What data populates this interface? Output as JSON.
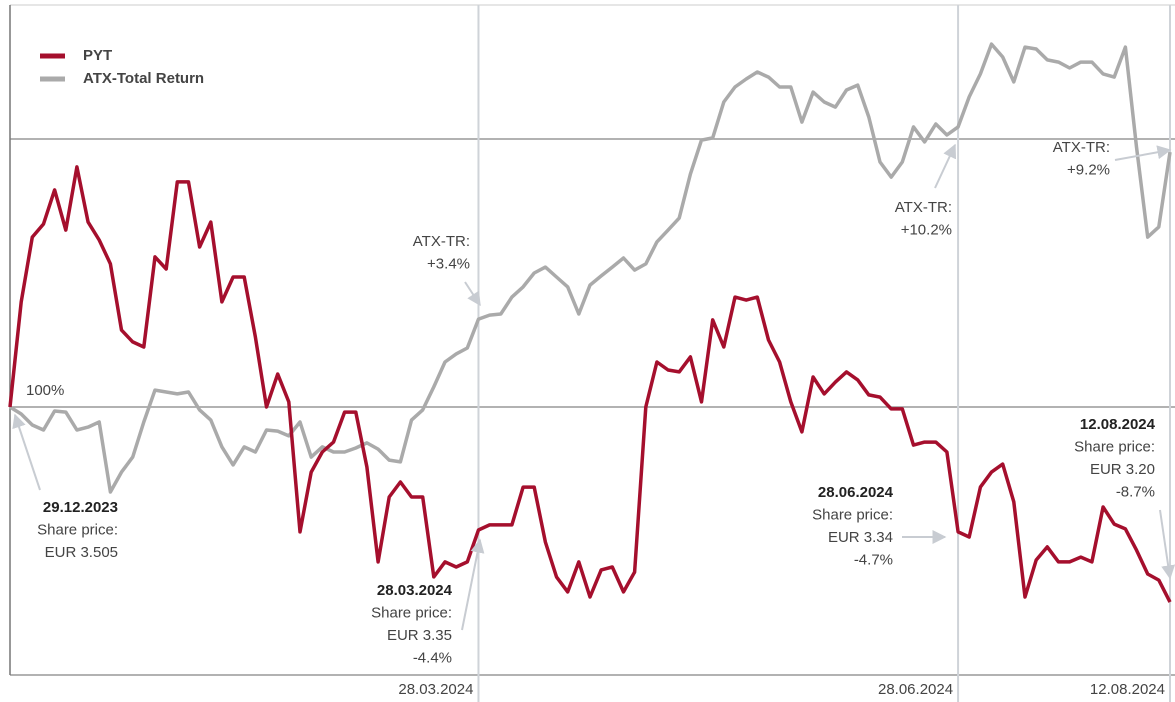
{
  "chart_data": {
    "type": "line",
    "categories": [
      null,
      null,
      null,
      null,
      null,
      null,
      null,
      null,
      null,
      null,
      null,
      null,
      null,
      null,
      null,
      null,
      null,
      null,
      null,
      null,
      null,
      null,
      null,
      null,
      null,
      null,
      null,
      null,
      null,
      null,
      null,
      null,
      null,
      null,
      null,
      null,
      null,
      null,
      null,
      null,
      null,
      null,
      "28.03.2024",
      null,
      null,
      null,
      null,
      null,
      null,
      null,
      null,
      null,
      null,
      null,
      null,
      null,
      null,
      null,
      null,
      null,
      null,
      null,
      null,
      null,
      null,
      null,
      null,
      null,
      null,
      null,
      null,
      null,
      null,
      null,
      null,
      null,
      null,
      null,
      null,
      null,
      null,
      null,
      null,
      null,
      null,
      "28.06.2024",
      null,
      null,
      null,
      null,
      null,
      null,
      null,
      null,
      null,
      null,
      null,
      null,
      null,
      null,
      null,
      null,
      null,
      null,
      "12.08.2024"
    ],
    "series": [
      {
        "name": "PYT",
        "color": "#a50f2d",
        "values": [
          100,
          103.92,
          106.34,
          106.83,
          108.1,
          106.6,
          108.96,
          106.9,
          106.23,
          105.34,
          102.87,
          102.43,
          102.24,
          105.6,
          105.15,
          108.4,
          108.4,
          105.97,
          106.9,
          103.92,
          104.85,
          104.85,
          102.61,
          100,
          101.23,
          100.19,
          95.34,
          97.57,
          98.32,
          98.69,
          99.81,
          99.81,
          97.76,
          94.22,
          96.64,
          97.2,
          96.64,
          96.64,
          93.66,
          94.22,
          94.03,
          94.22,
          95.41,
          95.6,
          95.6,
          95.6,
          97.01,
          97.01,
          94.96,
          93.66,
          93.1,
          94.22,
          92.91,
          93.92,
          94.03,
          93.1,
          93.84,
          100,
          101.68,
          101.38,
          101.31,
          101.87,
          100.19,
          103.25,
          102.24,
          104.1,
          103.99,
          104.1,
          102.5,
          101.68,
          100.19,
          99.07,
          101.12,
          100.49,
          100.93,
          101.31,
          101.01,
          100.45,
          100.37,
          99.93,
          99.93,
          98.58,
          98.69,
          98.69,
          98.32,
          95.34,
          95.15,
          97.01,
          97.57,
          97.87,
          96.46,
          92.91,
          94.29,
          94.78,
          94.22,
          94.22,
          94.4,
          94.22,
          96.27,
          95.63,
          95.45,
          94.66,
          93.77,
          93.54,
          92.72
        ]
      },
      {
        "name": "ATX-Total Return",
        "color": "#aaaaaa",
        "values": [
          100,
          99.74,
          99.33,
          99.14,
          99.85,
          99.81,
          99.14,
          99.25,
          99.44,
          96.83,
          97.57,
          98.13,
          99.44,
          100.63,
          100.56,
          100.49,
          100.56,
          99.89,
          99.51,
          98.51,
          97.84,
          98.51,
          98.32,
          99.14,
          99.1,
          98.92,
          99.44,
          98.13,
          98.51,
          98.32,
          98.32,
          98.47,
          98.66,
          98.43,
          98.02,
          97.95,
          99.51,
          99.89,
          100.75,
          101.68,
          101.98,
          102.2,
          103.28,
          103.43,
          103.47,
          104.1,
          104.48,
          105.0,
          105.22,
          104.85,
          104.48,
          103.47,
          104.55,
          104.89,
          105.22,
          105.56,
          105.11,
          105.34,
          106.16,
          106.6,
          107.05,
          108.69,
          109.96,
          110.04,
          111.38,
          111.94,
          112.24,
          112.5,
          112.31,
          111.94,
          111.94,
          110.63,
          111.75,
          111.38,
          111.19,
          111.83,
          112.01,
          110.82,
          109.14,
          108.58,
          109.14,
          110.45,
          109.89,
          110.56,
          110.15,
          110.45,
          111.57,
          112.43,
          113.54,
          113.06,
          112.13,
          113.43,
          113.36,
          112.95,
          112.87,
          112.65,
          112.87,
          112.87,
          112.43,
          112.31,
          113.43,
          109.7,
          106.34,
          106.72,
          109.51
        ]
      }
    ],
    "ylim": [
      90,
      115
    ],
    "grid_values": [
      90,
      100,
      110
    ],
    "yticks": [
      {
        "value": 100,
        "label": "100%"
      }
    ],
    "annotations": [
      {
        "title": "29.12.2023",
        "text": [
          "Share price:",
          "EUR 3.505"
        ]
      },
      {
        "title": "28.03.2024",
        "text": [
          "Share price:",
          "EUR 3.35",
          "-4.4%"
        ]
      },
      {
        "title": "28.06.2024",
        "text": [
          "Share price:",
          "EUR 3.34",
          "-4.7%"
        ]
      },
      {
        "title": "12.08.2024",
        "text": [
          "Share price:",
          "EUR 3.20",
          "-8.7%"
        ]
      },
      {
        "text": [
          "ATX-TR:",
          "+3.4%"
        ]
      },
      {
        "text": [
          "ATX-TR:",
          "+10.2%"
        ]
      },
      {
        "text": [
          "ATX-TR:",
          "+9.2%"
        ]
      }
    ]
  }
}
